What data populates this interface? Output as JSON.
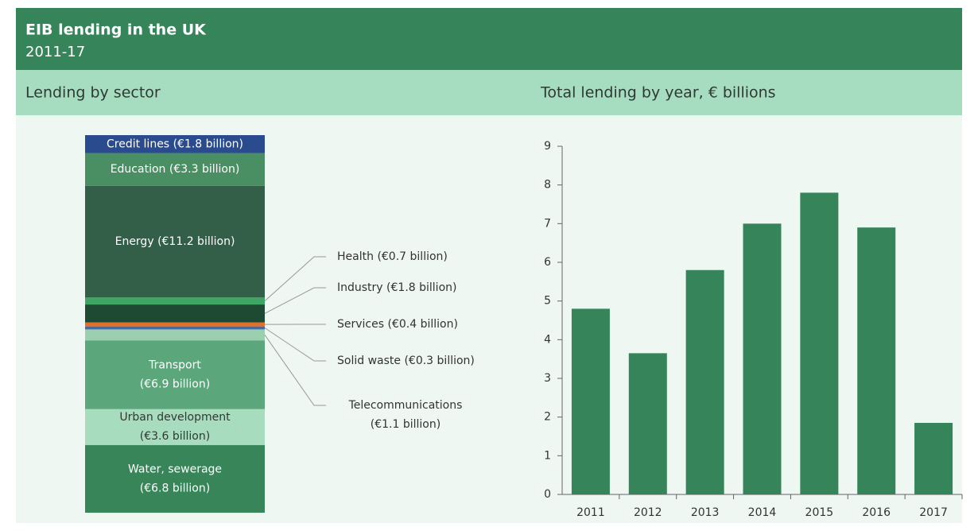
{
  "header": {
    "title": "EIB lending in the UK",
    "subtitle": "2011-17"
  },
  "chart_data": [
    {
      "type": "stacked-bar",
      "title": "Lending by sector",
      "series": [
        {
          "name": "Water, sewerage",
          "color": "#378559",
          "values": [
            6.8
          ],
          "value_labels": [
            "(€6.8 billion)"
          ]
        },
        {
          "name": "Urban development",
          "color": "#a8dcbf",
          "values": [
            3.6
          ],
          "value_labels": [
            "(€3.6 billion)"
          ]
        },
        {
          "name": "Transport",
          "color": "#5ba67a",
          "values": [
            6.9
          ],
          "value_labels": [
            "(€6.9 billion)"
          ]
        },
        {
          "name": "Telecommunications",
          "color": "#9ccfb0",
          "values": [
            1.1
          ],
          "value_labels": [
            "(€1.1 billion)"
          ]
        },
        {
          "name": "Solid waste",
          "color": "#3d6cb3",
          "values": [
            0.3
          ],
          "value_labels": [
            "(€0.3 billion)"
          ]
        },
        {
          "name": "Services",
          "color": "#e0702a",
          "values": [
            0.4
          ],
          "value_labels": [
            "(€0.4 billion)"
          ]
        },
        {
          "name": "Industry",
          "color": "#1e4a33",
          "values": [
            1.8
          ],
          "value_labels": [
            "(€1.8 billion)"
          ]
        },
        {
          "name": "Health",
          "color": "#3ea565",
          "values": [
            0.7
          ],
          "value_labels": [
            "(€0.7 billion)"
          ]
        },
        {
          "name": "Energy",
          "color": "#335e48",
          "values": [
            11.2
          ],
          "value_labels": [
            "(€11.2 billion)"
          ]
        },
        {
          "name": "Education",
          "color": "#4a8f63",
          "values": [
            3.3
          ],
          "value_labels": [
            "(€3.3 billion)"
          ]
        },
        {
          "name": "Credit lines",
          "color": "#2a4b8d",
          "values": [
            1.8
          ],
          "value_labels": [
            "(€1.8 billion)"
          ]
        }
      ]
    },
    {
      "type": "bar",
      "title": "Total lending by year, € billions",
      "categories": [
        "2011",
        "2012",
        "2013",
        "2014",
        "2015",
        "2016",
        "2017"
      ],
      "values": [
        4.8,
        3.65,
        5.8,
        7.0,
        7.8,
        6.9,
        1.85
      ],
      "color": "#35845a",
      "ylim": [
        0,
        9
      ],
      "yticks": [
        0,
        1,
        2,
        3,
        4,
        5,
        6,
        7,
        8,
        9
      ]
    }
  ]
}
